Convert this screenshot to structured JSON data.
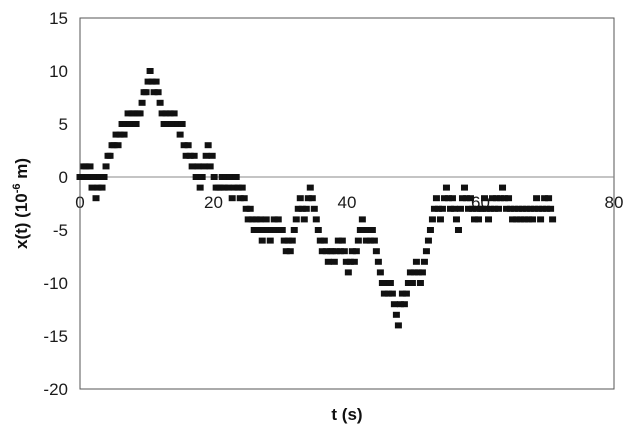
{
  "chart_data": {
    "type": "scatter",
    "xlabel": "t (s)",
    "ylabel": {
      "prefix": "x(t) (10",
      "exponent": "-6",
      "suffix": " m)"
    },
    "xlim": [
      0,
      80
    ],
    "ylim": [
      -20,
      15
    ],
    "xticks": [
      0,
      20,
      40,
      60,
      80
    ],
    "yticks": [
      15,
      10,
      5,
      0,
      -5,
      -10,
      -15,
      -20
    ],
    "grid": false,
    "legend": "none",
    "marker_color": "#111111",
    "series": [
      {
        "x": [
          0,
          0.3,
          0.6,
          0.9,
          1.2,
          1.5,
          1.8,
          2.1,
          2.4,
          2.7,
          3.0,
          3.3,
          3.6,
          3.9,
          4.2,
          4.5,
          4.8,
          5.1,
          5.4,
          5.7,
          6.0,
          6.3,
          6.6,
          6.9,
          7.2,
          7.5,
          7.8,
          8.1,
          8.4,
          8.7,
          9.0,
          9.3,
          9.6,
          9.9,
          10.2,
          10.5,
          10.8,
          11.1,
          11.4,
          11.7,
          12.0,
          12.3,
          12.6,
          12.9,
          13.2,
          13.5,
          13.8,
          14.1,
          14.4,
          14.7,
          15.0,
          15.3,
          15.6,
          15.9,
          16.2,
          16.5,
          16.8,
          17.1,
          17.4,
          17.7,
          18.0,
          18.3,
          18.6,
          18.9,
          19.2,
          19.5,
          19.8,
          20.1,
          20.4,
          20.7,
          21.0,
          21.3,
          21.6,
          21.9,
          22.2,
          22.5,
          22.8,
          23.1,
          23.4,
          23.7,
          24.0,
          24.3,
          24.6,
          24.9,
          25.2,
          25.5,
          25.8,
          26.1,
          26.4,
          26.7,
          27.0,
          27.3,
          27.6,
          27.9,
          28.2,
          28.5,
          28.8,
          29.1,
          29.4,
          29.7,
          30.0,
          30.3,
          30.6,
          30.9,
          31.2,
          31.5,
          31.8,
          32.1,
          32.4,
          32.7,
          33.0,
          33.3,
          33.6,
          33.9,
          34.2,
          34.5,
          34.8,
          35.1,
          35.4,
          35.7,
          36.0,
          36.3,
          36.6,
          36.9,
          37.2,
          37.5,
          37.8,
          38.1,
          38.4,
          38.7,
          39.0,
          39.3,
          39.6,
          39.9,
          40.2,
          40.5,
          40.8,
          41.1,
          41.4,
          41.7,
          42.0,
          42.3,
          42.6,
          42.9,
          43.2,
          43.5,
          43.8,
          44.1,
          44.4,
          44.7,
          45.0,
          45.3,
          45.6,
          45.9,
          46.2,
          46.5,
          46.8,
          47.1,
          47.4,
          47.7,
          48.0,
          48.3,
          48.6,
          48.9,
          49.2,
          49.5,
          49.8,
          50.1,
          50.4,
          50.7,
          51.0,
          51.3,
          51.6,
          51.9,
          52.2,
          52.5,
          52.8,
          53.1,
          53.4,
          53.7,
          54.0,
          54.3,
          54.6,
          54.9,
          55.2,
          55.5,
          55.8,
          56.1,
          56.4,
          56.7,
          57.0,
          57.3,
          57.6,
          57.9,
          58.2,
          58.5,
          58.8,
          59.1,
          59.4,
          59.7,
          60.0,
          60.3,
          60.6,
          60.9,
          61.2,
          61.5,
          61.8,
          62.1,
          62.4,
          62.7,
          63.0,
          63.3,
          63.6,
          63.9,
          64.2,
          64.5,
          64.8,
          65.1,
          65.4,
          65.7,
          66.0,
          66.3,
          66.6,
          66.9,
          67.2,
          67.5,
          67.8,
          68.1,
          68.4,
          68.7,
          69.0,
          69.3,
          69.6,
          69.9,
          70.2,
          70.5,
          70.8
        ],
        "y": [
          0,
          0,
          1,
          1,
          0,
          1,
          -1,
          0,
          -2,
          -1,
          0,
          -1,
          0,
          1,
          2,
          2,
          3,
          3,
          4,
          3,
          4,
          5,
          4,
          5,
          6,
          5,
          6,
          6,
          5,
          6,
          6,
          7,
          8,
          8,
          9,
          10,
          9,
          8,
          9,
          8,
          7,
          6,
          5,
          6,
          5,
          6,
          5,
          6,
          5,
          5,
          4,
          5,
          3,
          2,
          3,
          2,
          1,
          2,
          0,
          1,
          -1,
          0,
          1,
          2,
          3,
          1,
          2,
          0,
          -1,
          -1,
          -1,
          0,
          -1,
          0,
          -1,
          0,
          -2,
          -1,
          0,
          -1,
          -2,
          -1,
          -2,
          -3,
          -4,
          -3,
          -4,
          -5,
          -4,
          -5,
          -4,
          -6,
          -5,
          -4,
          -5,
          -6,
          -5,
          -4,
          -5,
          -4,
          -5,
          -5,
          -6,
          -7,
          -6,
          -7,
          -6,
          -5,
          -4,
          -3,
          -2,
          -3,
          -4,
          -3,
          -2,
          -1,
          -2,
          -3,
          -4,
          -5,
          -6,
          -7,
          -6,
          -7,
          -8,
          -7,
          -7,
          -8,
          -7,
          -6,
          -7,
          -6,
          -7,
          -8,
          -9,
          -8,
          -7,
          -8,
          -7,
          -6,
          -5,
          -4,
          -5,
          -6,
          -5,
          -6,
          -5,
          -6,
          -7,
          -8,
          -9,
          -10,
          -11,
          -10,
          -11,
          -10,
          -11,
          -12,
          -13,
          -14,
          -12,
          -11,
          -12,
          -11,
          -10,
          -9,
          -10,
          -9,
          -8,
          -9,
          -10,
          -9,
          -8,
          -7,
          -6,
          -5,
          -4,
          -3,
          -2,
          -3,
          -4,
          -3,
          -2,
          -1,
          -2,
          -3,
          -2,
          -3,
          -4,
          -5,
          -3,
          -2,
          -1,
          -2,
          -3,
          -2,
          -3,
          -4,
          -3,
          -4,
          -3,
          -3,
          -2,
          -3,
          -4,
          -3,
          -2,
          -3,
          -2,
          -3,
          -2,
          -1,
          -2,
          -3,
          -2,
          -3,
          -4,
          -3,
          -4,
          -3,
          -4,
          -3,
          -4,
          -3,
          -4,
          -3,
          -4,
          -3,
          -2,
          -3,
          -4,
          -3,
          -2,
          -3,
          -2,
          -3,
          -4
        ]
      }
    ]
  }
}
